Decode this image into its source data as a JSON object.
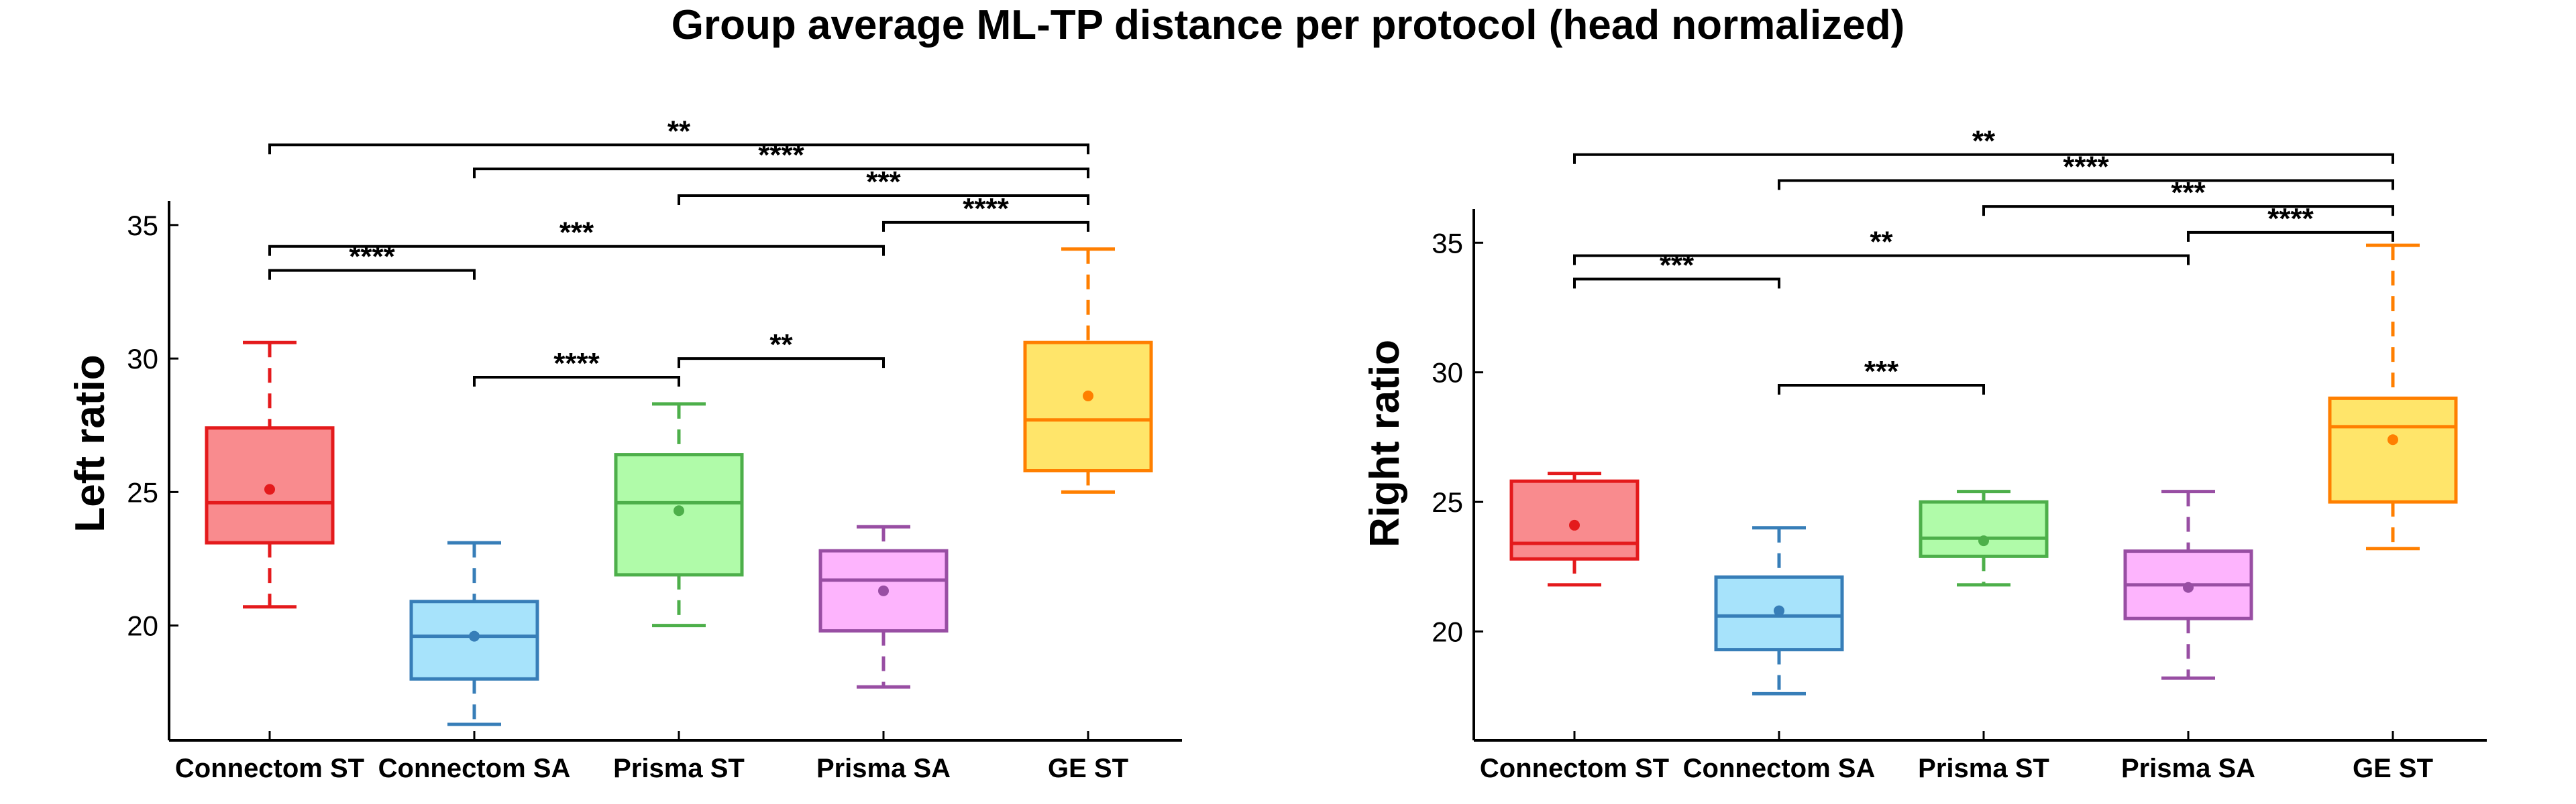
{
  "title": "Group average ML-TP distance per protocol (head normalized)",
  "chart_data": [
    {
      "type": "box",
      "ylabel": "Left ratio",
      "categories": [
        "Connectom ST",
        "Connectom SA",
        "Prisma ST",
        "Prisma SA",
        "GE ST"
      ],
      "ylim": [
        15.7,
        35.9
      ],
      "yticks": [
        20,
        25,
        30,
        35
      ],
      "boxes": [
        {
          "category": "Connectom ST",
          "whisker_low": 20.7,
          "q1": 23.1,
          "median": 24.6,
          "q3": 27.4,
          "whisker_high": 30.6,
          "mean": 25.1,
          "color": "#e41a1c",
          "fill": "#f98b8e"
        },
        {
          "category": "Connectom SA",
          "whisker_low": 16.3,
          "q1": 18.0,
          "median": 19.6,
          "q3": 20.9,
          "whisker_high": 23.1,
          "mean": 19.6,
          "color": "#377eb8",
          "fill": "#a7e3fb"
        },
        {
          "category": "Prisma ST",
          "whisker_low": 20.0,
          "q1": 21.9,
          "median": 24.6,
          "q3": 26.4,
          "whisker_high": 28.3,
          "mean": 24.3,
          "color": "#4daf4a",
          "fill": "#b0fba9"
        },
        {
          "category": "Prisma SA",
          "whisker_low": 17.7,
          "q1": 19.8,
          "median": 21.7,
          "q3": 22.8,
          "whisker_high": 23.7,
          "mean": 21.3,
          "color": "#984ea3",
          "fill": "#fdb4fd"
        },
        {
          "category": "GE ST",
          "whisker_low": 25.0,
          "q1": 25.8,
          "median": 27.7,
          "q3": 30.6,
          "whisker_high": 34.1,
          "mean": 28.6,
          "color": "#ff7f00",
          "fill": "#ffe56a"
        }
      ],
      "significance": [
        {
          "from": "Connectom ST",
          "to": "GE ST",
          "label": "**",
          "y": 38.0
        },
        {
          "from": "Connectom SA",
          "to": "GE ST",
          "label": "****",
          "y": 37.1
        },
        {
          "from": "Prisma ST",
          "to": "GE ST",
          "label": "***",
          "y": 36.1
        },
        {
          "from": "Prisma SA",
          "to": "GE ST",
          "label": "****",
          "y": 35.1
        },
        {
          "from": "Connectom ST",
          "to": "Prisma SA",
          "label": "***",
          "y": 34.2
        },
        {
          "from": "Connectom ST",
          "to": "Connectom SA",
          "label": "****",
          "y": 33.3
        },
        {
          "from": "Prisma ST",
          "to": "Prisma SA",
          "label": "**",
          "y": 30.0
        },
        {
          "from": "Connectom SA",
          "to": "Prisma ST",
          "label": "****",
          "y": 29.3
        }
      ]
    },
    {
      "type": "box",
      "ylabel": "Right ratio",
      "categories": [
        "Connectom ST",
        "Connectom SA",
        "Prisma ST",
        "Prisma SA",
        "GE ST"
      ],
      "ylim": [
        15.8,
        36.3
      ],
      "yticks": [
        20,
        25,
        30,
        35
      ],
      "boxes": [
        {
          "category": "Connectom ST",
          "whisker_low": 21.8,
          "q1": 22.8,
          "median": 23.4,
          "q3": 25.8,
          "whisker_high": 26.1,
          "mean": 24.1,
          "color": "#e41a1c",
          "fill": "#f98b8e"
        },
        {
          "category": "Connectom SA",
          "whisker_low": 17.6,
          "q1": 19.3,
          "median": 20.6,
          "q3": 22.1,
          "whisker_high": 24.0,
          "mean": 20.8,
          "color": "#377eb8",
          "fill": "#a7e3fb"
        },
        {
          "category": "Prisma ST",
          "whisker_low": 21.8,
          "q1": 22.9,
          "median": 23.6,
          "q3": 25.0,
          "whisker_high": 25.4,
          "mean": 23.5,
          "color": "#4daf4a",
          "fill": "#b0fba9"
        },
        {
          "category": "Prisma SA",
          "whisker_low": 18.2,
          "q1": 20.5,
          "median": 21.8,
          "q3": 23.1,
          "whisker_high": 25.4,
          "mean": 21.7,
          "color": "#984ea3",
          "fill": "#fdb4fd"
        },
        {
          "category": "GE ST",
          "whisker_low": 23.2,
          "q1": 25.0,
          "median": 27.9,
          "q3": 29.0,
          "whisker_high": 34.9,
          "mean": 27.4,
          "color": "#ff7f00",
          "fill": "#ffe56a"
        }
      ],
      "significance": [
        {
          "from": "Connectom ST",
          "to": "GE ST",
          "label": "**",
          "y": 38.4
        },
        {
          "from": "Connectom SA",
          "to": "GE ST",
          "label": "****",
          "y": 37.4
        },
        {
          "from": "Prisma ST",
          "to": "GE ST",
          "label": "***",
          "y": 36.4
        },
        {
          "from": "Prisma SA",
          "to": "GE ST",
          "label": "****",
          "y": 35.4
        },
        {
          "from": "Connectom ST",
          "to": "Prisma SA",
          "label": "**",
          "y": 34.5
        },
        {
          "from": "Connectom ST",
          "to": "Connectom SA",
          "label": "***",
          "y": 33.6
        },
        {
          "from": "Connectom SA",
          "to": "Prisma ST",
          "label": "***",
          "y": 29.5
        }
      ]
    }
  ]
}
